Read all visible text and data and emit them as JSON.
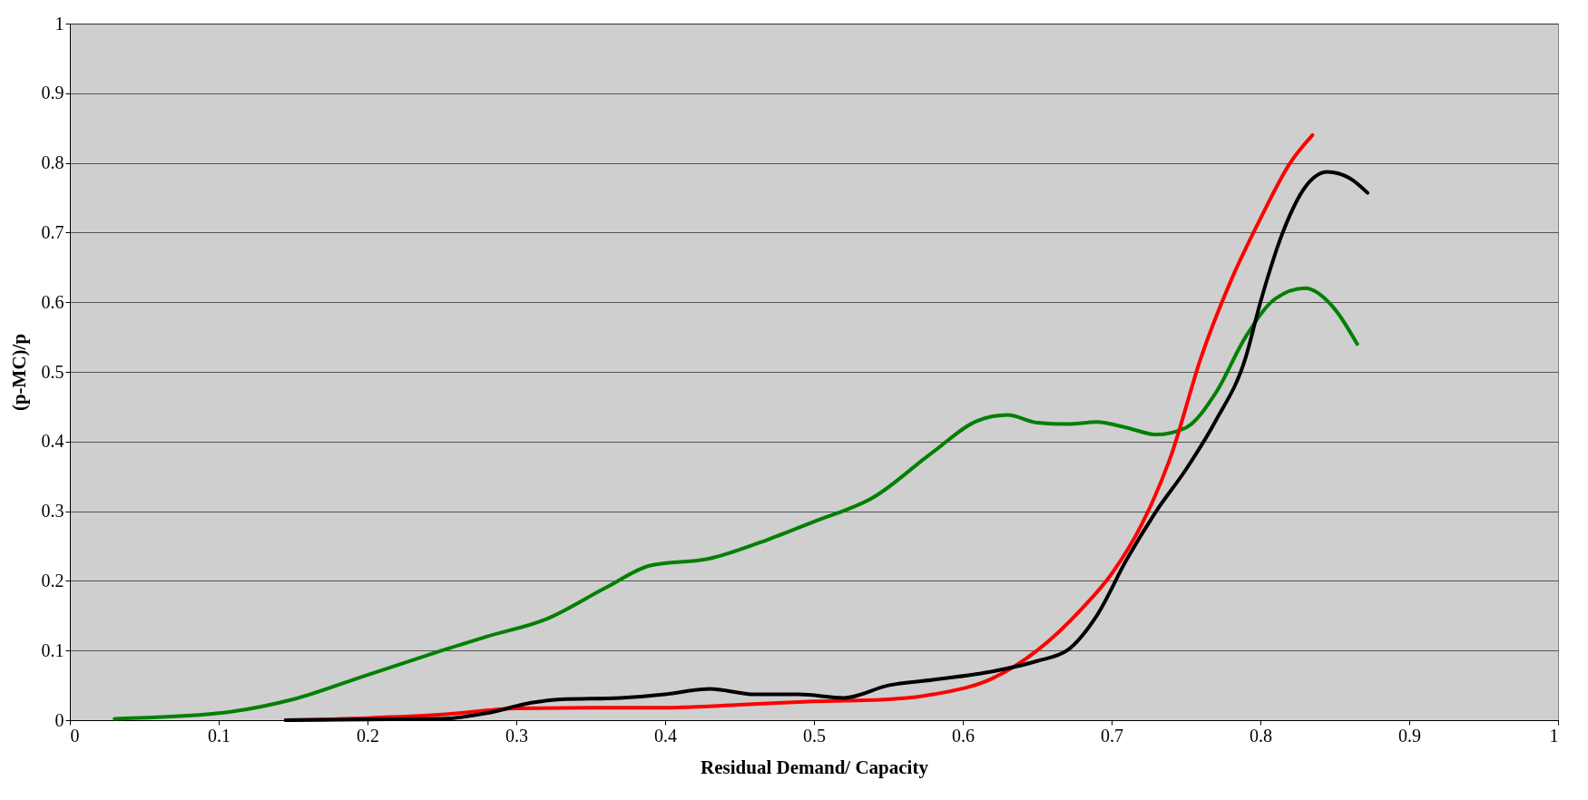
{
  "chart_data": {
    "type": "line",
    "xlabel": "Residual Demand/ Capacity",
    "ylabel": "(p-MC)/p",
    "xlim": [
      0,
      1
    ],
    "ylim": [
      0,
      1
    ],
    "xticks": [
      0,
      0.1,
      0.2,
      0.3,
      0.4,
      0.5,
      0.6,
      0.7,
      0.8,
      0.9,
      1
    ],
    "yticks": [
      0,
      0.1,
      0.2,
      0.3,
      0.4,
      0.5,
      0.6,
      0.7,
      0.8,
      0.9,
      1
    ],
    "grid": "y",
    "legend": false,
    "marker": "none",
    "line_style": "solid",
    "series": [
      {
        "color": "#008000",
        "x": [
          0.03,
          0.1,
          0.15,
          0.2,
          0.25,
          0.28,
          0.32,
          0.36,
          0.39,
          0.43,
          0.47,
          0.5,
          0.54,
          0.58,
          0.61,
          0.63,
          0.65,
          0.67,
          0.69,
          0.71,
          0.73,
          0.75,
          0.77,
          0.79,
          0.81,
          0.83,
          0.85,
          0.865
        ],
        "values": [
          0.002,
          0.01,
          0.03,
          0.065,
          0.1,
          0.12,
          0.145,
          0.19,
          0.222,
          0.232,
          0.26,
          0.285,
          0.32,
          0.385,
          0.43,
          0.438,
          0.427,
          0.425,
          0.428,
          0.42,
          0.41,
          0.42,
          0.47,
          0.55,
          0.605,
          0.62,
          0.59,
          0.54
        ]
      },
      {
        "color": "#ff0000",
        "x": [
          0.145,
          0.2,
          0.25,
          0.3,
          0.35,
          0.4,
          0.45,
          0.5,
          0.55,
          0.58,
          0.62,
          0.65,
          0.68,
          0.7,
          0.72,
          0.74,
          0.76,
          0.78,
          0.8,
          0.82,
          0.835
        ],
        "values": [
          0,
          0.003,
          0.008,
          0.017,
          0.018,
          0.018,
          0.022,
          0.027,
          0.03,
          0.037,
          0.06,
          0.1,
          0.16,
          0.21,
          0.28,
          0.38,
          0.52,
          0.63,
          0.72,
          0.8,
          0.84
        ]
      },
      {
        "color": "#000000",
        "x": [
          0.145,
          0.25,
          0.28,
          0.31,
          0.33,
          0.37,
          0.4,
          0.43,
          0.46,
          0.49,
          0.52,
          0.55,
          0.58,
          0.62,
          0.65,
          0.67,
          0.69,
          0.71,
          0.73,
          0.75,
          0.77,
          0.79,
          0.8,
          0.815,
          0.83,
          0.845,
          0.86,
          0.872
        ],
        "values": [
          0,
          0.002,
          0.01,
          0.025,
          0.03,
          0.032,
          0.037,
          0.045,
          0.037,
          0.037,
          0.032,
          0.05,
          0.058,
          0.07,
          0.085,
          0.1,
          0.15,
          0.23,
          0.3,
          0.36,
          0.43,
          0.52,
          0.6,
          0.7,
          0.765,
          0.787,
          0.778,
          0.757
        ]
      }
    ]
  }
}
